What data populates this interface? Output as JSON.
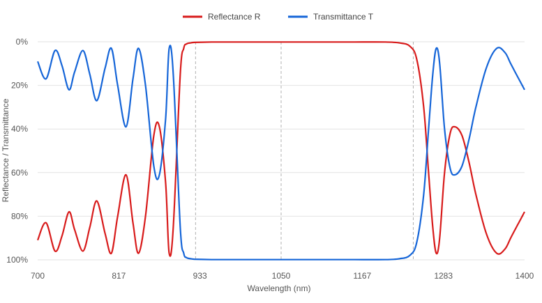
{
  "chart_data": {
    "type": "line",
    "xlabel": "Wavelength (nm)",
    "ylabel": "Reflectance / Transmittance",
    "xlim": [
      700,
      1400
    ],
    "ylim": [
      0,
      100
    ],
    "y_inverted": true,
    "x_ticks": [
      "700",
      "817",
      "933",
      "1050",
      "1167",
      "1283",
      "1400"
    ],
    "y_ticks": [
      "0%",
      "20%",
      "40%",
      "60%",
      "80%",
      "100%"
    ],
    "grid": true,
    "legend_position": "top",
    "reference_lines": [
      927,
      1050,
      1240
    ],
    "series": [
      {
        "name": "Reflectance R",
        "color": "#d81b1b",
        "x": [
          700,
          712,
          725,
          735,
          745,
          753,
          765,
          775,
          785,
          797,
          806,
          815,
          827,
          837,
          845,
          855,
          867,
          875,
          884,
          889,
          895,
          905,
          910,
          914,
          920,
          925,
          935,
          950,
          975,
          1000,
          1050,
          1100,
          1150,
          1200,
          1220,
          1235,
          1245,
          1255,
          1262,
          1268,
          1273,
          1278,
          1285,
          1293,
          1300,
          1310,
          1320,
          1330,
          1345,
          1360,
          1372,
          1380,
          1390,
          1400
        ],
        "y": [
          91,
          83,
          96,
          89,
          78,
          86,
          96,
          85,
          73,
          88,
          97,
          80,
          61,
          83,
          97,
          80,
          43,
          39,
          65,
          97,
          85,
          15,
          3,
          1,
          0.5,
          0.3,
          0.2,
          0.1,
          0.1,
          0.1,
          0.1,
          0.1,
          0.1,
          0.1,
          0.5,
          2,
          8,
          30,
          60,
          85,
          97,
          90,
          60,
          42,
          39,
          43,
          55,
          70,
          88,
          97,
          95,
          90,
          84,
          78
        ]
      },
      {
        "name": "Transmittance T",
        "color": "#1565d8",
        "x": [
          700,
          712,
          725,
          735,
          745,
          753,
          765,
          775,
          785,
          797,
          806,
          815,
          827,
          837,
          845,
          855,
          867,
          875,
          884,
          889,
          895,
          905,
          910,
          914,
          920,
          925,
          935,
          950,
          975,
          1000,
          1050,
          1100,
          1150,
          1200,
          1220,
          1235,
          1245,
          1255,
          1262,
          1268,
          1273,
          1278,
          1285,
          1293,
          1300,
          1310,
          1320,
          1330,
          1345,
          1360,
          1372,
          1380,
          1390,
          1400
        ],
        "y": [
          9,
          17,
          4,
          11,
          22,
          14,
          4,
          15,
          27,
          12,
          3,
          20,
          39,
          17,
          3,
          20,
          57,
          61,
          35,
          3,
          15,
          85,
          97,
          99,
          99.5,
          99.7,
          99.8,
          99.9,
          99.9,
          99.9,
          99.9,
          99.9,
          99.9,
          99.9,
          99.5,
          98,
          92,
          70,
          40,
          15,
          3,
          10,
          40,
          58,
          61,
          57,
          45,
          30,
          12,
          3,
          5,
          10,
          16,
          22
        ]
      }
    ]
  }
}
